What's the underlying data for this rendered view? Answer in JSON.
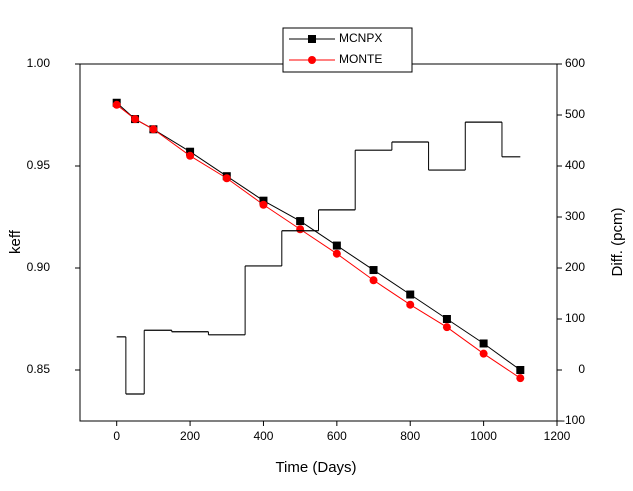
{
  "chart_data": {
    "type": "line",
    "xlabel": "Time (Days)",
    "ylabel": "keff",
    "y2label": "Diff. (pcm)",
    "x": [
      0,
      50,
      100,
      200,
      300,
      400,
      500,
      600,
      700,
      800,
      900,
      1000,
      1100
    ],
    "series": [
      {
        "name": "MCNPX",
        "color": "#000000",
        "marker": "square",
        "values": [
          0.981,
          0.973,
          0.968,
          0.957,
          0.945,
          0.933,
          0.923,
          0.911,
          0.899,
          0.887,
          0.875,
          0.863,
          0.85
        ]
      },
      {
        "name": "MONTE",
        "color": "#ff0000",
        "marker": "circle",
        "values": [
          0.98,
          0.973,
          0.968,
          0.955,
          0.944,
          0.931,
          0.919,
          0.907,
          0.894,
          0.882,
          0.871,
          0.858,
          0.846
        ]
      },
      {
        "color": "#000000",
        "axis": "y2",
        "drawstyle": "steps-mid",
        "values": [
          65,
          -47,
          78,
          75,
          69,
          204,
          273,
          314,
          431,
          447,
          392,
          486,
          418
        ]
      }
    ],
    "xlim": [
      -100,
      1200
    ],
    "xticks": [
      0,
      200,
      400,
      600,
      800,
      1000,
      1200
    ],
    "ylim": [
      0.825,
      1.0
    ],
    "yticks": [
      {
        "value": 0.85,
        "label": "0.85"
      },
      {
        "value": 0.9,
        "label": "0.90"
      },
      {
        "value": 0.95,
        "label": "0.95"
      },
      {
        "value": 1.0,
        "label": "1.00"
      }
    ],
    "y2lim": [
      -100,
      600
    ],
    "y2ticks": [
      -100,
      0,
      100,
      200,
      300,
      400,
      500,
      600
    ],
    "legend": "top-center"
  }
}
